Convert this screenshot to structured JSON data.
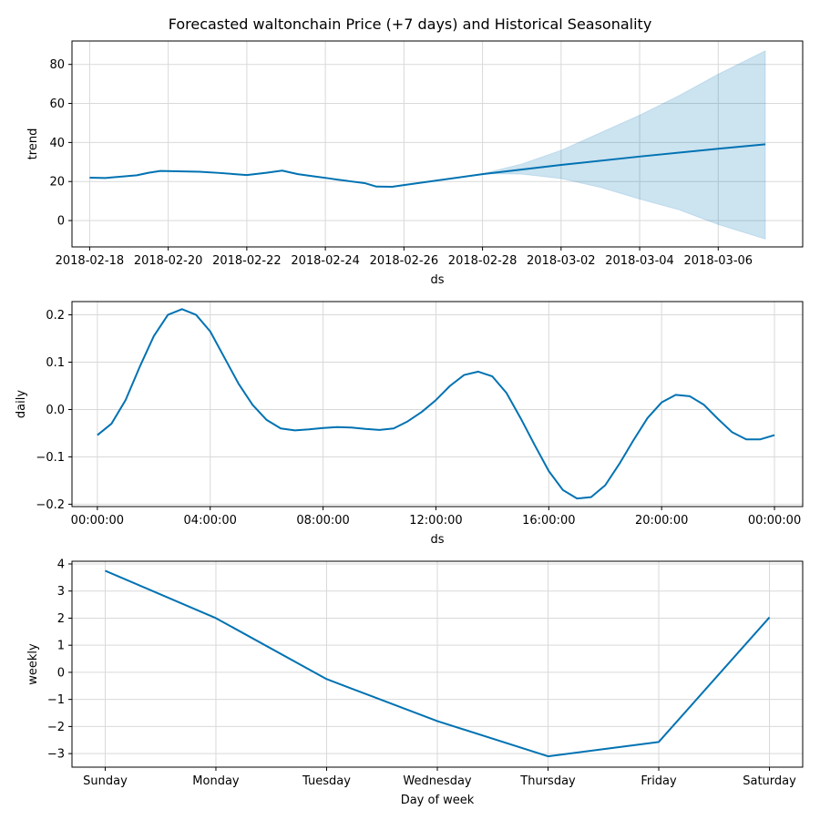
{
  "title": "Forecasted waltonchain Price (+7 days) and Historical Seasonality",
  "chart_data": [
    {
      "type": "line",
      "xlabel": "ds",
      "ylabel": "trend",
      "xlim": [
        -0.45,
        18.15
      ],
      "ylim": [
        -13.5,
        92
      ],
      "grid": true,
      "xticks": [
        0,
        2,
        4,
        6,
        8,
        10,
        12,
        14,
        16
      ],
      "xtick_labels": [
        "2018-02-18",
        "2018-02-20",
        "2018-02-22",
        "2018-02-24",
        "2018-02-26",
        "2018-02-28",
        "2018-03-02",
        "2018-03-04",
        "2018-03-06"
      ],
      "yticks": [
        0,
        20,
        40,
        60,
        80
      ],
      "ytick_labels": [
        "0",
        "20",
        "40",
        "60",
        "80"
      ],
      "series": [
        {
          "x": [
            0,
            0.4,
            1.2,
            1.5,
            1.8,
            2.1,
            2.8,
            3.3,
            4.0,
            4.5,
            4.9,
            5.3,
            5.7,
            6.1,
            6.3,
            6.6,
            7.0,
            7.3,
            7.7,
            8.0,
            10.0,
            12.0,
            14.0,
            16.0,
            17.2
          ],
          "y": [
            22.0,
            21.8,
            23.2,
            24.5,
            25.4,
            25.3,
            25.0,
            24.4,
            23.3,
            24.5,
            25.6,
            23.8,
            22.7,
            21.6,
            21.0,
            20.2,
            19.2,
            17.4,
            17.3,
            18.2,
            23.8,
            28.5,
            32.8,
            36.8,
            39.1
          ]
        }
      ],
      "band": {
        "x": [
          10.0,
          11.0,
          12.0,
          13.0,
          14.0,
          15.0,
          16.0,
          17.2
        ],
        "upper": [
          24.0,
          29.0,
          36.0,
          45.0,
          54.0,
          64.0,
          75.0,
          87.0
        ],
        "lower": [
          24.0,
          23.8,
          21.5,
          17.0,
          11.0,
          5.5,
          -2.0,
          -9.5
        ]
      }
    },
    {
      "type": "line",
      "xlabel": "ds",
      "ylabel": "daily",
      "xlim": [
        -0.9,
        25.0
      ],
      "ylim": [
        -0.205,
        0.228
      ],
      "grid": true,
      "xticks": [
        0,
        4,
        8,
        12,
        16,
        20,
        24
      ],
      "xtick_labels": [
        "00:00:00",
        "04:00:00",
        "08:00:00",
        "12:00:00",
        "16:00:00",
        "20:00:00",
        "00:00:00"
      ],
      "yticks": [
        -0.2,
        -0.1,
        0.0,
        0.1,
        0.2
      ],
      "ytick_labels": [
        "−0.2",
        "−0.1",
        "0.0",
        "0.1",
        "0.2"
      ],
      "series": [
        {
          "x": [
            0,
            0.5,
            1.0,
            1.5,
            2.0,
            2.5,
            3.0,
            3.5,
            4.0,
            4.5,
            5.0,
            5.5,
            6.0,
            6.5,
            7.0,
            7.5,
            8.0,
            8.5,
            9.0,
            9.5,
            10.0,
            10.5,
            11.0,
            11.5,
            12.0,
            12.5,
            13.0,
            13.5,
            14.0,
            14.5,
            15.0,
            15.5,
            16.0,
            16.5,
            17.0,
            17.5,
            18.0,
            18.5,
            19.0,
            19.5,
            20.0,
            20.5,
            21.0,
            21.5,
            22.0,
            22.5,
            23.0,
            23.5,
            24.0
          ],
          "y": [
            -0.054,
            -0.03,
            0.02,
            0.09,
            0.155,
            0.2,
            0.212,
            0.2,
            0.165,
            0.11,
            0.055,
            0.01,
            -0.022,
            -0.04,
            -0.044,
            -0.042,
            -0.039,
            -0.037,
            -0.038,
            -0.041,
            -0.043,
            -0.04,
            -0.025,
            -0.005,
            0.02,
            0.05,
            0.073,
            0.08,
            0.07,
            0.035,
            -0.018,
            -0.075,
            -0.13,
            -0.17,
            -0.188,
            -0.185,
            -0.16,
            -0.115,
            -0.065,
            -0.018,
            0.015,
            0.031,
            0.028,
            0.01,
            -0.02,
            -0.048,
            -0.063,
            -0.063,
            -0.054
          ]
        }
      ]
    },
    {
      "type": "line",
      "xlabel": "Day of week",
      "ylabel": "weekly",
      "xlim": [
        -0.3,
        6.3
      ],
      "ylim": [
        -3.5,
        4.1
      ],
      "grid": true,
      "categories": [
        "Sunday",
        "Monday",
        "Tuesday",
        "Wednesday",
        "Thursday",
        "Friday",
        "Saturday"
      ],
      "yticks": [
        -3,
        -2,
        -1,
        0,
        1,
        2,
        3,
        4
      ],
      "ytick_labels": [
        "−3",
        "−2",
        "−1",
        "0",
        "1",
        "2",
        "3",
        "4"
      ],
      "series": [
        {
          "values": [
            3.75,
            2.0,
            -0.25,
            -1.8,
            -3.1,
            -2.57,
            2.03
          ]
        }
      ]
    }
  ]
}
